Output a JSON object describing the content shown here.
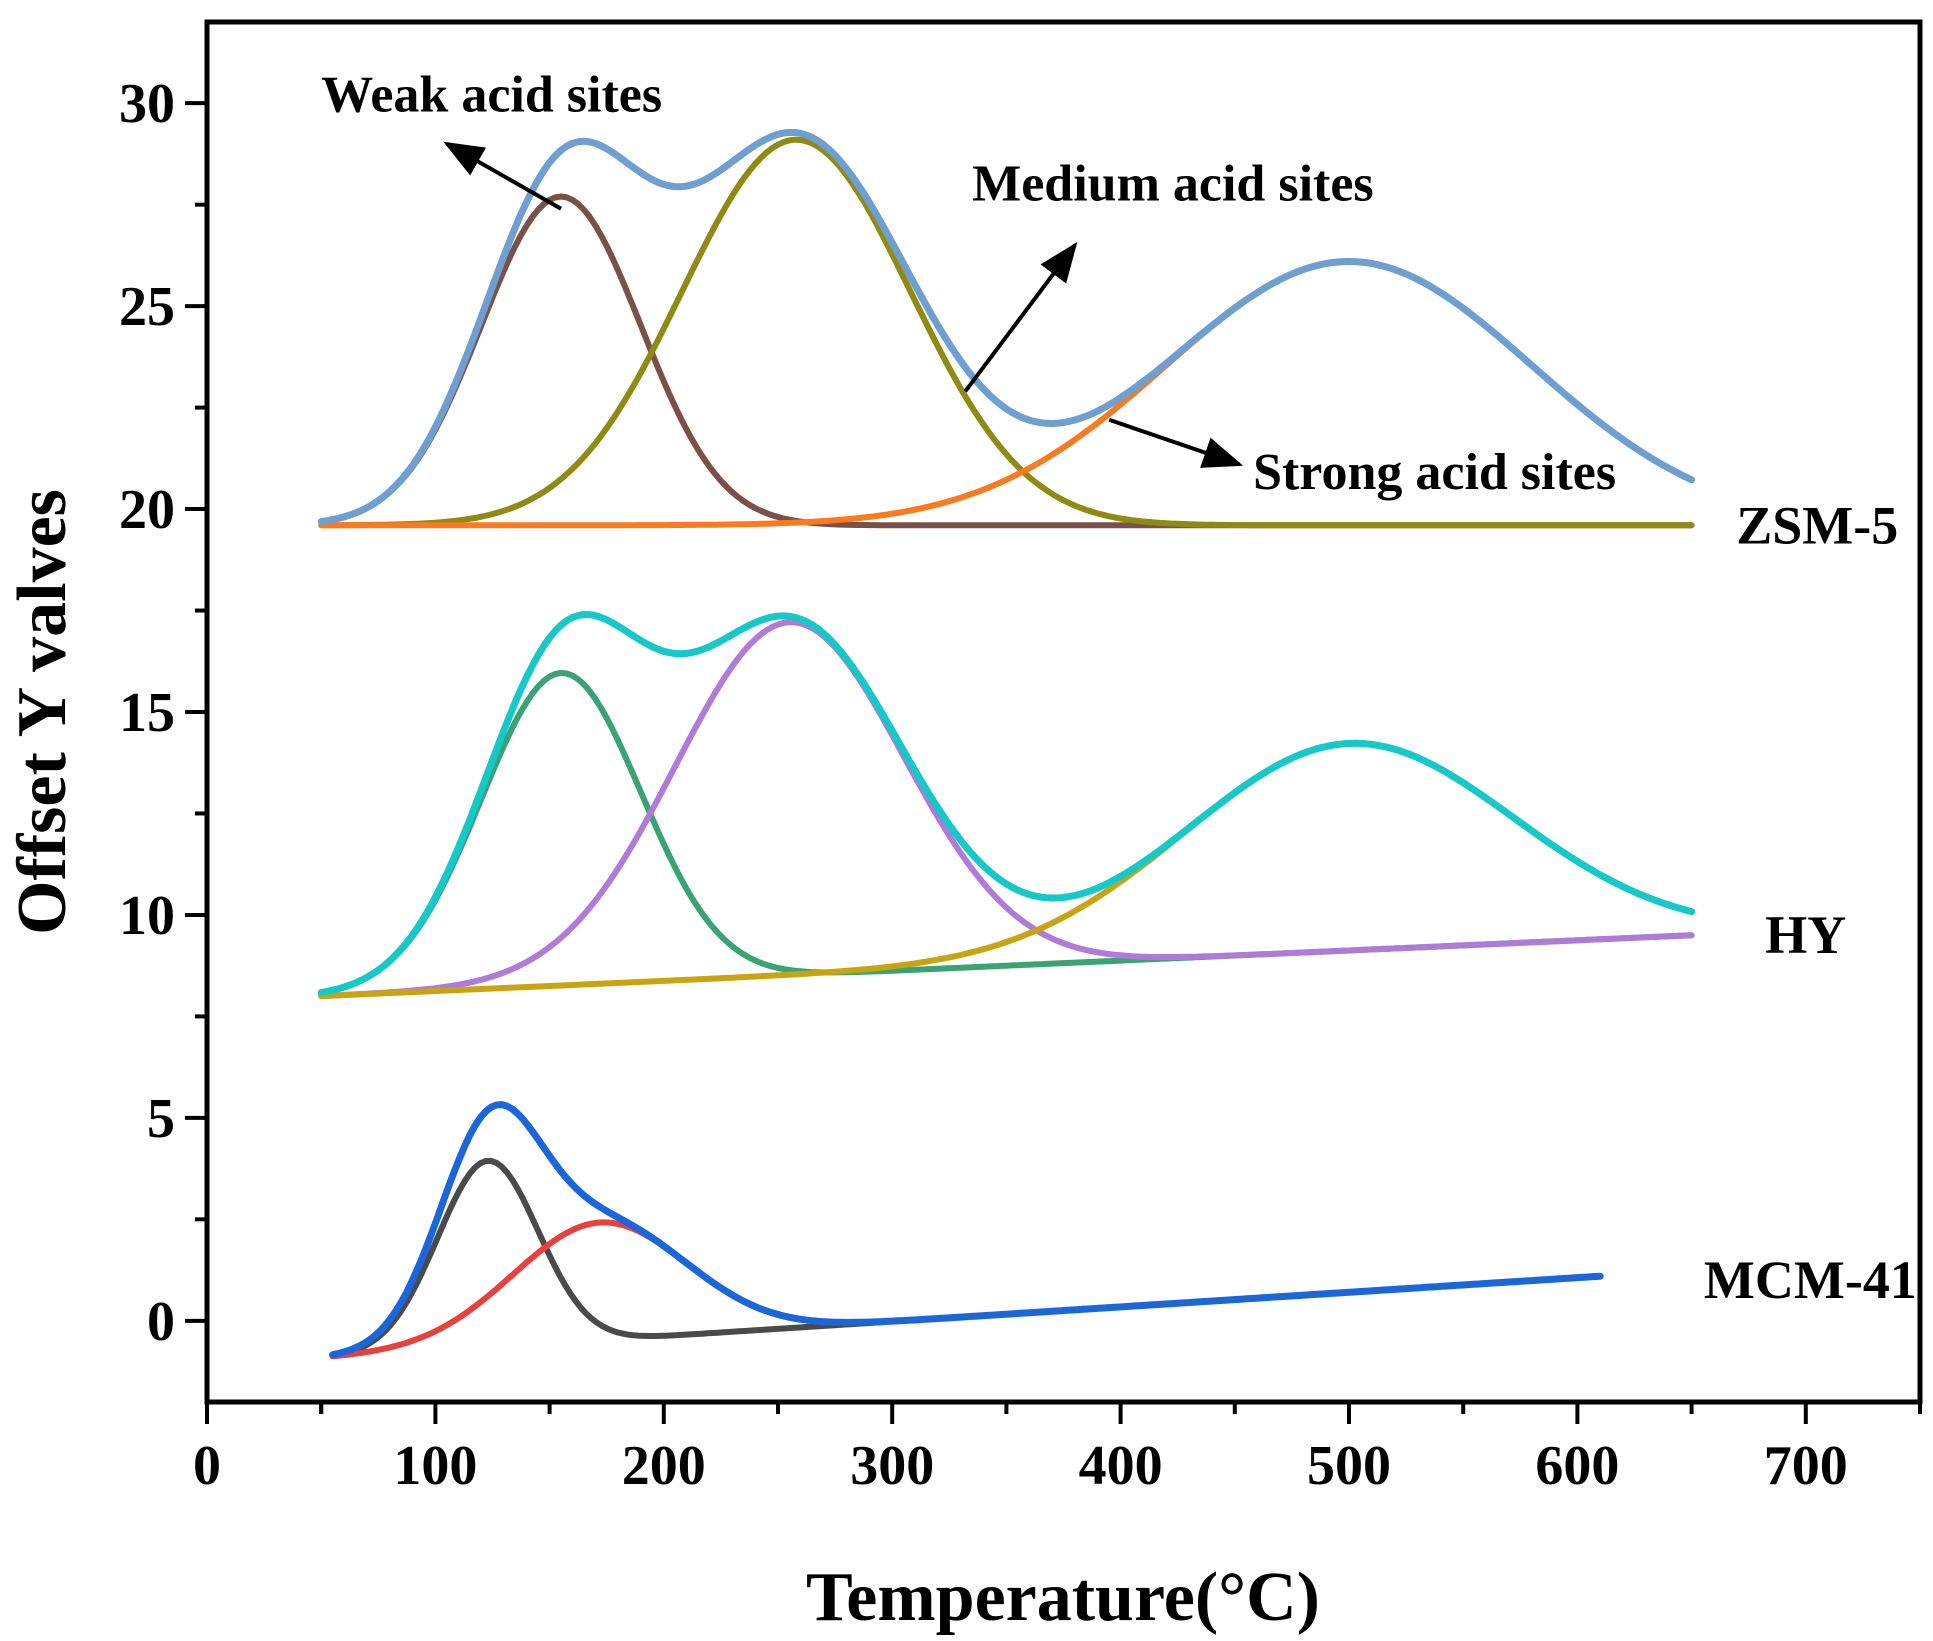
{
  "chart_data": {
    "type": "line",
    "title": "",
    "xlabel": "Temperature(°C)",
    "ylabel": "Offset Y valves",
    "xlim": [
      0,
      750
    ],
    "ylim": [
      -2,
      32
    ],
    "xticks": [
      0,
      100,
      200,
      300,
      400,
      500,
      600,
      700
    ],
    "yticks": [
      0,
      5,
      10,
      15,
      20,
      25,
      30
    ],
    "grid": false,
    "legend": "none",
    "samples": [
      {
        "name": "ZSM-5",
        "label_x": 705,
        "label_y": 19.6,
        "x_range": [
          50,
          650
        ],
        "baseline": {
          "start": 19.6,
          "end": 19.6
        },
        "peaks": [
          {
            "name": "Weak acid sites",
            "center": 155,
            "height": 8.1,
            "sigma": 35,
            "color": "#7a5148"
          },
          {
            "name": "Medium acid sites",
            "center": 258,
            "height": 9.5,
            "sigma": 50,
            "color": "#8e8a12"
          },
          {
            "name": "Strong acid sites",
            "center": 500,
            "height": 6.5,
            "sigma": 80,
            "color": "#f97a1f"
          }
        ],
        "envelope_color": "#6f9ed0"
      },
      {
        "name": "HY",
        "label_x": 700,
        "label_y": 9.5,
        "x_range": [
          50,
          650
        ],
        "baseline": {
          "start": 8.0,
          "end": 9.5
        },
        "peaks": [
          {
            "name": "Weak",
            "center": 155,
            "height": 7.7,
            "sigma": 35,
            "color": "#3aa374"
          },
          {
            "name": "Medium",
            "center": 255,
            "height": 8.7,
            "sigma": 50,
            "color": "#b07ad8"
          },
          {
            "name": "Strong",
            "center": 500,
            "height": 5.1,
            "sigma": 72,
            "color": "#c9a412"
          }
        ],
        "envelope_color": "#16c8c8"
      },
      {
        "name": "MCM-41",
        "label_x": 702,
        "label_y": 1.0,
        "x_range": [
          55,
          610
        ],
        "baseline": {
          "start": -0.9,
          "end": 1.1
        },
        "peaks": [
          {
            "name": "Weak",
            "center": 123,
            "height": 4.6,
            "sigma": 22,
            "color": "#4a4a4a"
          },
          {
            "name": "Medium",
            "center": 172,
            "height": 2.9,
            "sigma": 38,
            "color": "#e8403c"
          }
        ],
        "envelope_color": "#1b66d8"
      }
    ],
    "annotations": [
      {
        "text": "Weak acid sites",
        "text_x": 50,
        "text_y": 29.8,
        "arrow_from": [
          155,
          27.4
        ],
        "arrow_to": [
          105,
          29.0
        ]
      },
      {
        "text": "Medium acid sites",
        "text_x": 335,
        "text_y": 27.6,
        "arrow_from": [
          332,
          22.9
        ],
        "arrow_to": [
          380,
          26.5
        ]
      },
      {
        "text": "Strong acid sites",
        "text_x": 458,
        "text_y": 20.5,
        "arrow_from": [
          395,
          22.2
        ],
        "arrow_to": [
          452,
          21.1
        ]
      }
    ]
  }
}
